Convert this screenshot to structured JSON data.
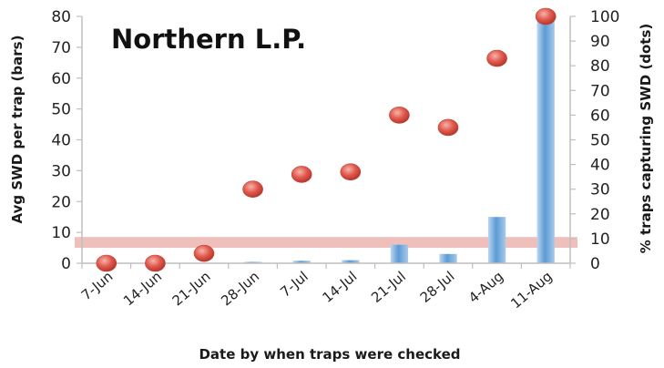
{
  "chart_data": {
    "type": "bar+scatter",
    "title": "Northern L.P.",
    "xlabel": "Date by when traps were checked",
    "ylabel_left": "Avg SWD per trap (bars)",
    "ylabel_right": "% traps capturing SWD (dots)",
    "categories": [
      "7-Jun",
      "14-Jun",
      "21-Jun",
      "28-Jun",
      "7-Jul",
      "14-Jul",
      "21-Jul",
      "28-Jul",
      "4-Aug",
      "11-Aug"
    ],
    "ylim_left": [
      0,
      80
    ],
    "yticks_left": [
      0,
      10,
      20,
      30,
      40,
      50,
      60,
      70,
      80
    ],
    "ylim_right": [
      0,
      100
    ],
    "yticks_right": [
      0,
      10,
      20,
      30,
      40,
      50,
      60,
      70,
      80,
      90,
      100
    ],
    "threshold_band": [
      5,
      8.5
    ],
    "series": [
      {
        "kind": "bar",
        "axis": "left",
        "values": [
          0,
          0,
          0,
          0.3,
          0.8,
          1,
          6,
          3,
          15,
          80
        ],
        "color": "#5b9bd5"
      },
      {
        "kind": "scatter",
        "axis": "right",
        "values": [
          0,
          0,
          4,
          30,
          36,
          37,
          60,
          55,
          83,
          100
        ],
        "color": "#e05a4e"
      }
    ],
    "colors": {
      "bar": "#5b9bd5",
      "dot": "#e05a4e",
      "band": "#e8a9a4",
      "axis": "#bfbfbf"
    },
    "grid": false,
    "legend": "none"
  }
}
